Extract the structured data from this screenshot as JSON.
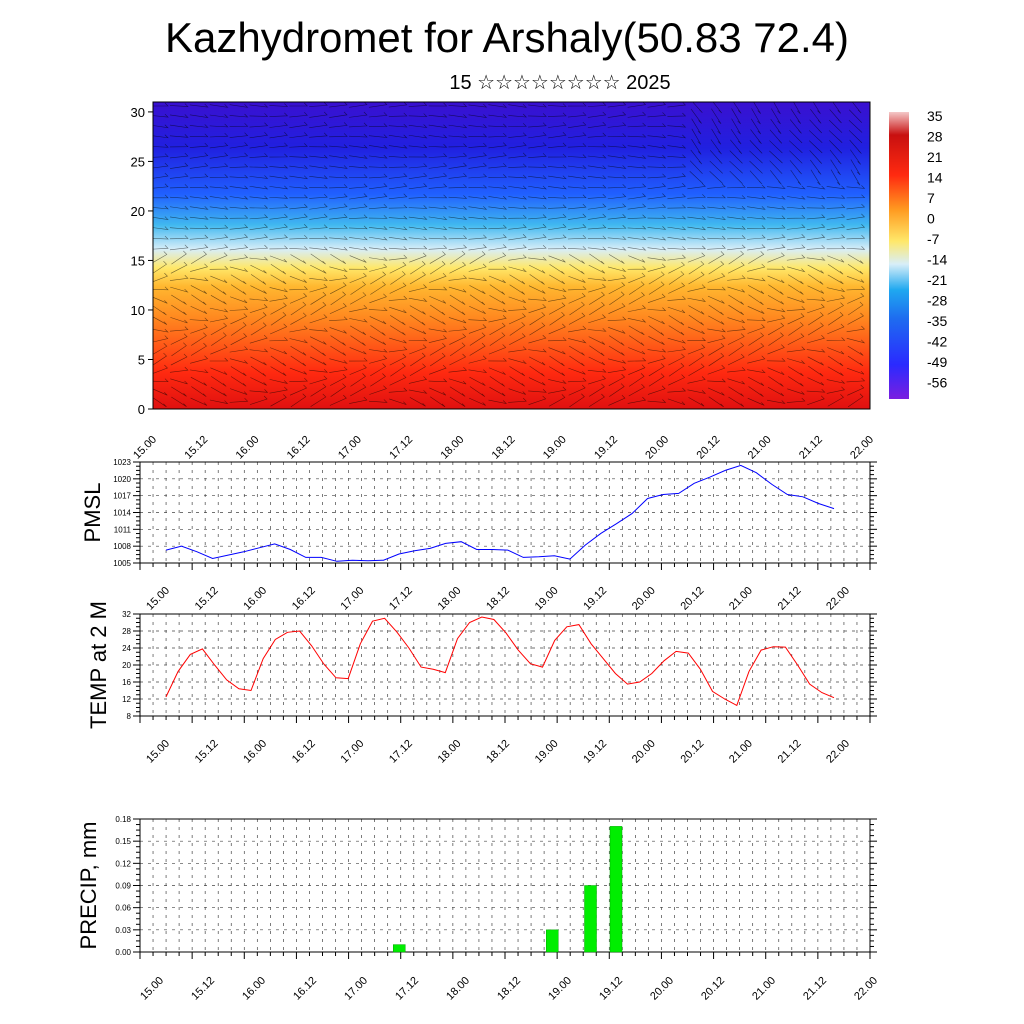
{
  "title": "Kazhydromet for Arshaly(50.83 72.4)",
  "subtitle": "15 ☆☆☆☆☆☆☆☆ 2025",
  "chart_data": [
    {
      "type": "heatmap",
      "description_hidden": "",
      "yticks": [
        "0",
        "5",
        "10",
        "15",
        "20",
        "25",
        "30"
      ],
      "ylim": [
        0,
        31
      ],
      "xticks": [
        "15.00",
        "15.12",
        "16.00",
        "16.12",
        "17.00",
        "17.12",
        "18.00",
        "18.12",
        "19.00",
        "19.12",
        "20.00",
        "20.12",
        "21.00",
        "21.12",
        "22.00"
      ],
      "colorbar_labels": [
        "35",
        "28",
        "21",
        "14",
        "7",
        "0",
        "-7",
        "-14",
        "-21",
        "-28",
        "-35",
        "-42",
        "-49",
        "-56"
      ],
      "colors": [
        "#7a1fe0",
        "#2a2aff",
        "#1fa8f0",
        "#d8eef8",
        "#ffe86a",
        "#ff9a20",
        "#ff2a10",
        "#c81010",
        "#ffffff"
      ]
    },
    {
      "type": "line",
      "ylabel": "PMSL",
      "ylim": [
        1005,
        1023
      ],
      "yticks": [
        "1005",
        "1008",
        "1011",
        "1014",
        "1017",
        "1020",
        "1023"
      ],
      "xticks": [
        "15.00",
        "15.12",
        "16.00",
        "16.12",
        "17.00",
        "17.12",
        "18.00",
        "18.12",
        "19.00",
        "19.12",
        "20.00",
        "20.12",
        "21.00",
        "21.12",
        "22.00"
      ],
      "series": [
        {
          "color": "#0000ff",
          "values": [
            1007.3,
            1008.0,
            1007.0,
            1005.8,
            1006.4,
            1007.0,
            1007.7,
            1008.4,
            1007.4,
            1006.0,
            1006.0,
            1005.3,
            1005.5,
            1005.4,
            1005.5,
            1006.6,
            1007.2,
            1007.6,
            1008.5,
            1008.8,
            1007.4,
            1007.4,
            1007.3,
            1006.0,
            1006.1,
            1006.3,
            1005.7,
            1008.2,
            1010.3,
            1012.0,
            1013.8,
            1016.5,
            1017.2,
            1017.4,
            1019.2,
            1020.3,
            1021.5,
            1022.4,
            1021.1,
            1019.0,
            1017.2,
            1016.8,
            1015.6,
            1014.7
          ]
        }
      ]
    },
    {
      "type": "line",
      "ylabel": "TEMP at 2 M",
      "ylim": [
        8,
        32
      ],
      "yticks": [
        "8",
        "12",
        "16",
        "20",
        "24",
        "28",
        "32"
      ],
      "xticks": [
        "15.00",
        "15.12",
        "16.00",
        "16.12",
        "17.00",
        "17.12",
        "18.00",
        "18.12",
        "19.00",
        "19.12",
        "20.00",
        "20.12",
        "21.00",
        "21.12",
        "22.00"
      ],
      "series": [
        {
          "color": "#ff0000",
          "values": [
            12.5,
            18.5,
            22.5,
            23.8,
            20.0,
            16.5,
            14.4,
            14.0,
            21.5,
            26.0,
            27.7,
            28.0,
            24.5,
            20.2,
            17.0,
            16.8,
            25.0,
            30.3,
            31.0,
            27.8,
            24.0,
            19.5,
            19.0,
            18.2,
            26.2,
            30.0,
            31.3,
            30.7,
            27.5,
            23.5,
            20.3,
            19.5,
            25.8,
            29.0,
            29.5,
            25.0,
            21.5,
            18.0,
            15.5,
            16.0,
            18.0,
            21.0,
            23.2,
            22.8,
            19.0,
            13.8,
            12.0,
            10.5,
            18.5,
            23.5,
            24.3,
            24.2,
            20.0,
            15.5,
            13.5,
            12.3
          ]
        }
      ]
    },
    {
      "type": "bar",
      "ylabel": "PRECIP, mm",
      "ylim": [
        0,
        0.18
      ],
      "yticks": [
        "0.00",
        "0.03",
        "0.06",
        "0.09",
        "0.12",
        "0.15",
        "0.18"
      ],
      "xticks": [
        "15.00",
        "15.12",
        "16.00",
        "16.12",
        "17.00",
        "17.12",
        "18.00",
        "18.12",
        "19.00",
        "19.12",
        "20.00",
        "20.12",
        "21.00",
        "21.12",
        "22.00"
      ],
      "bar_color": "#00ee00",
      "bars": [
        {
          "x": "17.09",
          "value": 0.01
        },
        {
          "x": "18.21",
          "value": 0.03
        },
        {
          "x": "19.06",
          "value": 0.09
        },
        {
          "x": "19.12",
          "value": 0.17
        }
      ]
    }
  ]
}
